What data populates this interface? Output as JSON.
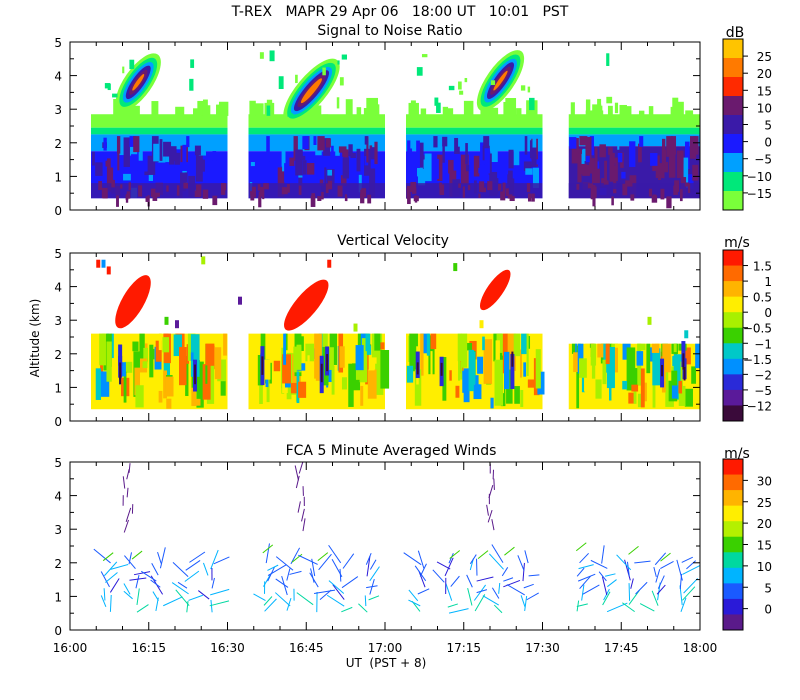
{
  "figure": {
    "title": "T-REX   MAPR 29 Apr 06   18:00 UT   10:01   PST",
    "xlabel": "UT  (PST + 8)",
    "ylabel": "Altitude (km)",
    "x_ticks": [
      "16:00",
      "16:15",
      "16:30",
      "16:45",
      "17:00",
      "17:15",
      "17:30",
      "17:45",
      "18:00"
    ]
  },
  "chart_data": [
    {
      "type": "heatmap",
      "title": "Signal to Noise Ratio",
      "units": "dB",
      "xlim_minutes_after_1600": [
        0,
        120
      ],
      "ylim_km": [
        0,
        5
      ],
      "y_ticks": [
        0,
        1,
        2,
        3,
        4,
        5
      ],
      "colorbar": {
        "labels": [
          "25",
          "20",
          "15",
          "10",
          "5",
          "0",
          "−5",
          "−10",
          "−15"
        ],
        "colors": [
          "#ffc400",
          "#ff7a00",
          "#ff2a00",
          "#6a1a6e",
          "#3a1aa8",
          "#1a1aff",
          "#00a0ff",
          "#00e87a",
          "#7aff3a"
        ]
      },
      "data_segments_minutes": [
        [
          4,
          30
        ],
        [
          34,
          60
        ],
        [
          64,
          90
        ],
        [
          95,
          120
        ]
      ],
      "notes": "Boundary layer echoes 0.4–2.8 km; elevated slanted feature ~3–4.5 km near 16:12, 16:45, 17:22"
    },
    {
      "type": "heatmap",
      "title": "Vertical Velocity",
      "units": "m/s",
      "xlim_minutes_after_1600": [
        0,
        120
      ],
      "ylim_km": [
        0,
        5
      ],
      "y_ticks": [
        0,
        1,
        2,
        3,
        4,
        5
      ],
      "colorbar": {
        "labels": [
          "1.5",
          "1",
          "0.5",
          "0",
          "−0.5",
          "−1",
          "−1.5",
          "−2",
          "−5",
          "−12"
        ],
        "colors": [
          "#ff1a00",
          "#ff6a00",
          "#ffb400",
          "#ffee00",
          "#a8f000",
          "#3ad000",
          "#00c8c8",
          "#0090ff",
          "#2a2ad8",
          "#5a1a9a",
          "#3a0a3a"
        ]
      },
      "data_segments_minutes": [
        [
          4,
          30
        ],
        [
          34,
          60
        ],
        [
          64,
          90
        ],
        [
          95,
          120
        ]
      ]
    },
    {
      "type": "scatter",
      "title": "FCA 5 Minute Averaged Winds",
      "units": "m/s",
      "xlim_minutes_after_1600": [
        0,
        120
      ],
      "ylim_km": [
        0,
        5
      ],
      "y_ticks": [
        0,
        1,
        2,
        3,
        4,
        5
      ],
      "colorbar": {
        "labels": [
          "30",
          "25",
          "20",
          "15",
          "10",
          "5",
          "0"
        ],
        "colors": [
          "#ff1a00",
          "#ff6a00",
          "#ffb400",
          "#ffee00",
          "#b4f000",
          "#3ad000",
          "#00d8a0",
          "#00b4ff",
          "#1a5aff",
          "#2a1ad8",
          "#5a1a8a"
        ]
      },
      "profile_times_minutes": [
        7,
        12,
        17,
        22,
        27,
        37,
        42,
        47,
        52,
        57,
        67,
        72,
        77,
        82,
        87,
        97,
        102,
        107,
        112,
        117
      ],
      "elevated_profiles_minutes": [
        11,
        44,
        80
      ]
    }
  ]
}
